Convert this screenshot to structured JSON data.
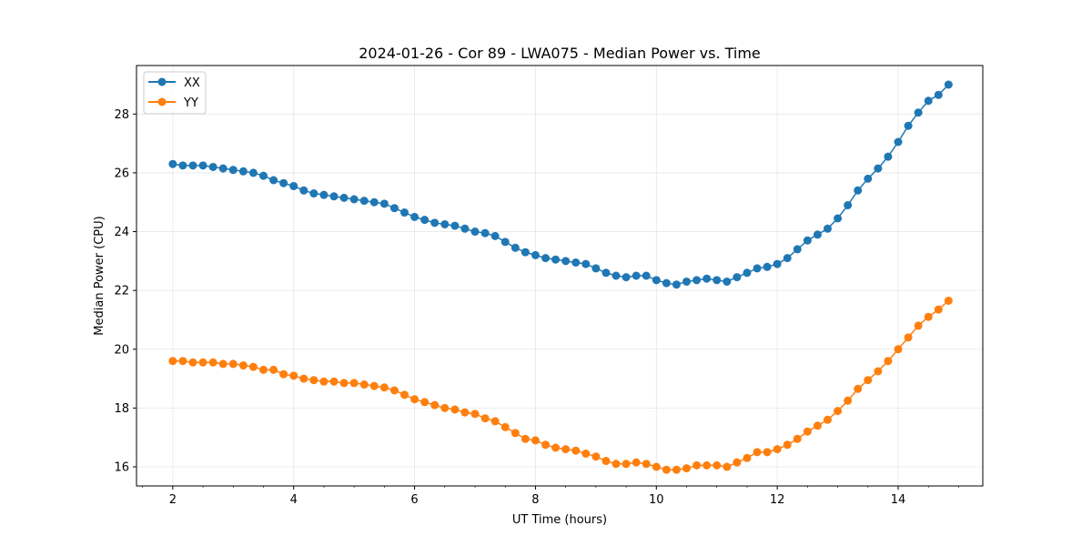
{
  "chart_data": {
    "type": "line",
    "title": "2024-01-26 - Cor 89 - LWA075 - Median Power vs. Time",
    "xlabel": "UT Time (hours)",
    "ylabel": "Median Power (CPU)",
    "xlim": [
      1.4,
      15.4
    ],
    "ylim": [
      15.35,
      29.65
    ],
    "xticks": [
      2,
      4,
      6,
      8,
      10,
      12,
      14
    ],
    "yticks": [
      16,
      18,
      20,
      22,
      24,
      26,
      28
    ],
    "grid": true,
    "legend_position": "top-left",
    "x": [
      2.0,
      2.167,
      2.333,
      2.5,
      2.667,
      2.833,
      3.0,
      3.167,
      3.333,
      3.5,
      3.667,
      3.833,
      4.0,
      4.167,
      4.333,
      4.5,
      4.667,
      4.833,
      5.0,
      5.167,
      5.333,
      5.5,
      5.667,
      5.833,
      6.0,
      6.167,
      6.333,
      6.5,
      6.667,
      6.833,
      7.0,
      7.167,
      7.333,
      7.5,
      7.667,
      7.833,
      8.0,
      8.167,
      8.333,
      8.5,
      8.667,
      8.833,
      9.0,
      9.167,
      9.333,
      9.5,
      9.667,
      9.833,
      10.0,
      10.167,
      10.333,
      10.5,
      10.667,
      10.833,
      11.0,
      11.167,
      11.333,
      11.5,
      11.667,
      11.833,
      12.0,
      12.167,
      12.333,
      12.5,
      12.667,
      12.833,
      13.0,
      13.167,
      13.333,
      13.5,
      13.667,
      13.833,
      14.0,
      14.167,
      14.333,
      14.5,
      14.667,
      14.833
    ],
    "series": [
      {
        "name": "XX",
        "color": "#1f77b4",
        "values": [
          26.3,
          26.25,
          26.25,
          26.25,
          26.2,
          26.15,
          26.1,
          26.05,
          26.0,
          25.9,
          25.75,
          25.65,
          25.55,
          25.4,
          25.3,
          25.25,
          25.2,
          25.15,
          25.1,
          25.05,
          25.0,
          24.95,
          24.8,
          24.65,
          24.5,
          24.4,
          24.3,
          24.25,
          24.2,
          24.1,
          24.0,
          23.95,
          23.85,
          23.65,
          23.45,
          23.3,
          23.2,
          23.1,
          23.05,
          23.0,
          22.95,
          22.9,
          22.75,
          22.6,
          22.5,
          22.45,
          22.5,
          22.5,
          22.35,
          22.25,
          22.2,
          22.3,
          22.35,
          22.4,
          22.35,
          22.3,
          22.45,
          22.6,
          22.75,
          22.8,
          22.9,
          23.1,
          23.4,
          23.7,
          23.9,
          24.1,
          24.45,
          24.9,
          25.4,
          25.8,
          26.15,
          26.55,
          27.05,
          27.6,
          28.05,
          28.45,
          28.65,
          29.0
        ]
      },
      {
        "name": "YY",
        "color": "#ff7f0e",
        "values": [
          19.6,
          19.6,
          19.55,
          19.55,
          19.55,
          19.5,
          19.5,
          19.45,
          19.4,
          19.3,
          19.3,
          19.15,
          19.1,
          19.0,
          18.95,
          18.9,
          18.9,
          18.85,
          18.85,
          18.8,
          18.75,
          18.7,
          18.6,
          18.45,
          18.3,
          18.2,
          18.1,
          18.0,
          17.95,
          17.85,
          17.8,
          17.65,
          17.55,
          17.35,
          17.15,
          16.95,
          16.9,
          16.75,
          16.65,
          16.6,
          16.55,
          16.45,
          16.35,
          16.2,
          16.1,
          16.1,
          16.15,
          16.1,
          16.0,
          15.9,
          15.9,
          15.95,
          16.05,
          16.05,
          16.05,
          16.0,
          16.15,
          16.3,
          16.5,
          16.5,
          16.6,
          16.75,
          16.95,
          17.2,
          17.4,
          17.6,
          17.9,
          18.25,
          18.65,
          18.95,
          19.25,
          19.6,
          20.0,
          20.4,
          20.8,
          21.1,
          21.35,
          21.65
        ]
      }
    ]
  }
}
